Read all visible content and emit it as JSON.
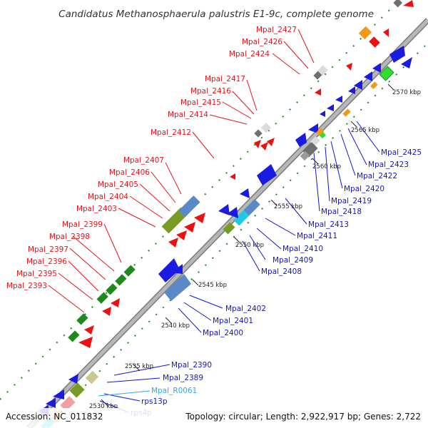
{
  "title": "Candidatus Methanosphaerula palustris E1-9c, complete genome",
  "footer": {
    "accession": "Accession: NC_011832",
    "summary": "Topology: circular; Length: 2,922,917 bp; Genes: 2,722"
  },
  "colors": {
    "label_red": "#e8141b",
    "label_blue": "#1414d2",
    "label_cyan": "#2aaee6",
    "track": "#a9a9a9",
    "gene_blue": "#1a1ae0",
    "gene_red": "#ee1010",
    "gene_green": "#1e8a1e",
    "gene_olive": "#7a9a26",
    "gene_steel": "#5b88c6",
    "gene_gray": "#6f6f6f",
    "gene_orange": "#f49a12"
  },
  "kbp_labels": [
    "2530 kbp",
    "2535 kbp",
    "2540 kbp",
    "2545 kbp",
    "2550 kbp",
    "2555 kbp",
    "2560 kbp",
    "2565 kbp",
    "2570 kbp"
  ],
  "upper_labels": [
    "Mpal_2393",
    "Mpal_2395",
    "Mpal_2396",
    "Mpal_2397",
    "Mpal_2398",
    "Mpal_2399",
    "Mpal_2403",
    "Mpal_2404",
    "Mpal_2405",
    "Mpal_2406",
    "Mpal_2407",
    "Mpal_2412",
    "Mpal_2414",
    "Mpal_2415",
    "Mpal_2416",
    "Mpal_2417",
    "Mpal_2424",
    "Mpal_2426",
    "Mpal_2427"
  ],
  "lower_labels": [
    "rps4p",
    "rps13p",
    "Mpal_R0061",
    "Mpal_2389",
    "Mpal_2390",
    "Mpal_2400",
    "Mpal_2401",
    "Mpal_2402",
    "Mpal_2408",
    "Mpal_2409",
    "Mpal_2410",
    "Mpal_2411",
    "Mpal_2413",
    "Mpal_2418",
    "Mpal_2419",
    "Mpal_2420",
    "Mpal_2422",
    "Mpal_2423",
    "Mpal_2425"
  ]
}
